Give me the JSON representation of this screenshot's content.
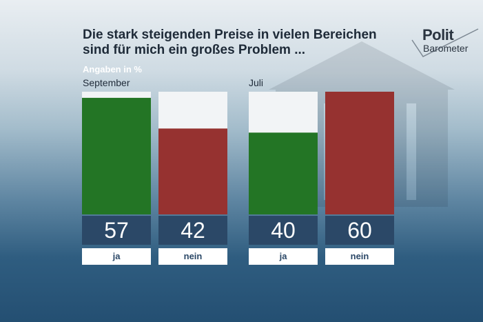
{
  "title_line1": "Die stark steigenden Preise in vielen Bereichen",
  "title_line2": "sind für mich ein großes Problem ...",
  "subtitle": "Angaben in %",
  "logo": {
    "top": "Polit",
    "bottom": "Barometer"
  },
  "colors": {
    "ja": "#237525",
    "nein": "#963230",
    "value_bg": "#2b4867",
    "plot_bg": "#f2f4f6"
  },
  "chart_data": [
    {
      "type": "bar",
      "title": "September",
      "categories": [
        "ja",
        "nein"
      ],
      "values": [
        57,
        42
      ],
      "ylim": [
        0,
        60
      ]
    },
    {
      "type": "bar",
      "title": "Juli",
      "categories": [
        "ja",
        "nein"
      ],
      "values": [
        40,
        60
      ],
      "ylim": [
        0,
        60
      ]
    }
  ]
}
